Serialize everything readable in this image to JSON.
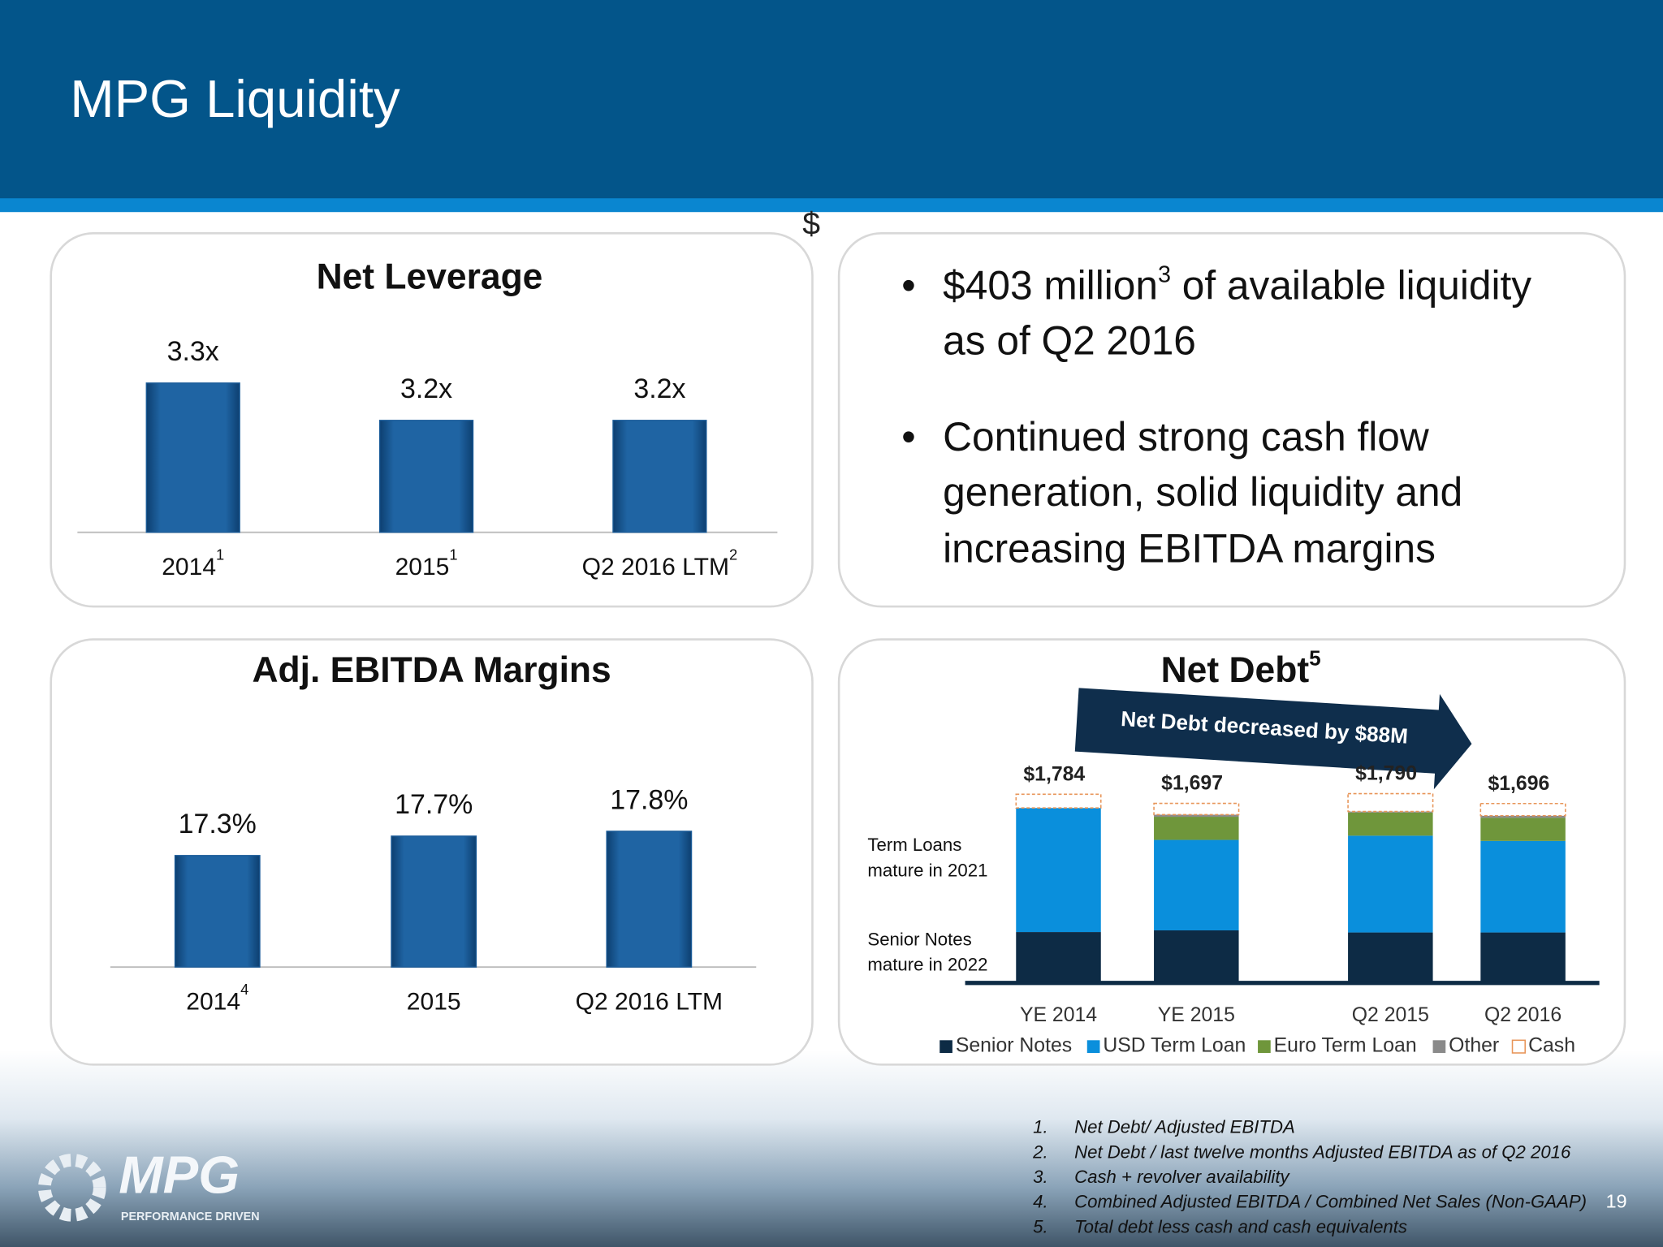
{
  "header": {
    "title": "MPG Liquidity",
    "stray": "$"
  },
  "bullets": [
    {
      "lead": "$403 million",
      "sup": "3",
      "rest": " of available liquidity",
      "line2": "as of Q2 2016"
    },
    {
      "lines": [
        "Continued strong cash flow",
        "generation, solid liquidity and",
        "increasing EBITDA margins"
      ]
    }
  ],
  "chart_data": [
    {
      "type": "bar",
      "title": "Net Leverage",
      "categories": [
        "2014",
        "2015",
        "Q2 2016 LTM"
      ],
      "category_notes": [
        "1",
        "1",
        "2"
      ],
      "values": [
        3.3,
        3.2,
        3.2
      ],
      "value_labels": [
        "3.3x",
        "3.2x",
        "3.2x"
      ],
      "color": "#1a5b98",
      "ylim": [
        2.9,
        3.4
      ]
    },
    {
      "type": "bar",
      "title": "Adj. EBITDA Margins",
      "categories": [
        "2014",
        "2015",
        "Q2 2016 LTM"
      ],
      "category_notes": [
        "4",
        null,
        null
      ],
      "values": [
        17.3,
        17.7,
        17.8
      ],
      "value_labels": [
        "17.3%",
        "17.7%",
        "17.8%"
      ],
      "color": "#1a5b98",
      "ylim": [
        15,
        19
      ]
    },
    {
      "type": "stacked_bar",
      "title": "Net Debt",
      "title_sup": "5",
      "categories": [
        "YE 2014",
        "YE 2015",
        "Q2 2015",
        "Q2 2016"
      ],
      "series": [
        {
          "name": "Senior Notes",
          "color": "#0d2b45",
          "values": [
            474,
            490,
            470,
            470
          ]
        },
        {
          "name": "USD Term Loan",
          "color": "#0a8fdc",
          "values": [
            1180,
            860,
            920,
            870
          ]
        },
        {
          "name": "Euro Term Loan",
          "color": "#6f963b",
          "values": [
            0,
            220,
            220,
            220
          ]
        },
        {
          "name": "Other",
          "color": "#8a8a8a",
          "values": [
            0,
            20,
            10,
            20
          ]
        },
        {
          "name": "Cash",
          "color": "#e8965a",
          "values": [
            130,
            107,
            170,
            116
          ]
        }
      ],
      "totals": [
        1784,
        1697,
        1790,
        1696
      ],
      "total_labels": [
        "$1,784",
        "$1,697",
        "$1,790",
        "$1,696"
      ],
      "ylim": [
        0,
        2000
      ],
      "annotations": {
        "arrow": "Net Debt decreased by $88M",
        "term_loans": [
          "Term Loans",
          "mature  in 2021"
        ],
        "senior_notes": [
          "Senior Notes",
          "mature in 2022"
        ]
      },
      "legend": "bottom"
    }
  ],
  "logo": {
    "name": "MPG",
    "tagline": "PERFORMANCE DRIVEN"
  },
  "footnotes": [
    {
      "number": "1.",
      "text": "Net Debt/ Adjusted EBITDA"
    },
    {
      "number": "2.",
      "text": "Net Debt / last twelve months Adjusted EBITDA as of Q2 2016"
    },
    {
      "number": "3.",
      "text": "Cash + revolver availability"
    },
    {
      "number": "4.",
      "text": "Combined Adjusted EBITDA / Combined Net Sales (Non-GAAP)"
    },
    {
      "number": "5.",
      "text": "Total debt less cash and cash equivalents"
    }
  ],
  "page_number": "19"
}
